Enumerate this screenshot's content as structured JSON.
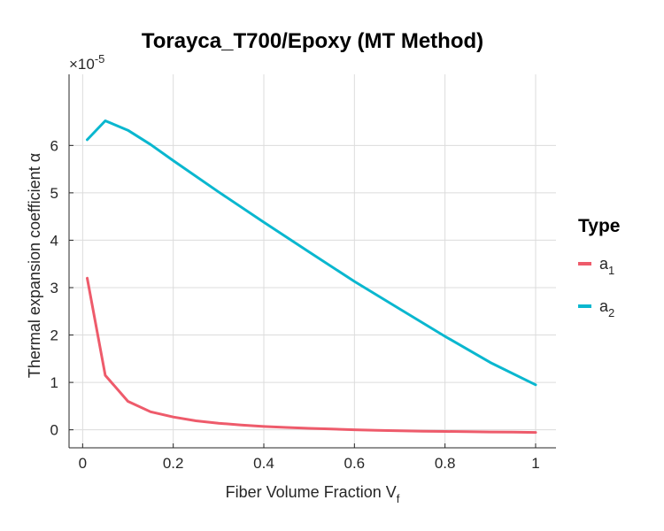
{
  "chart_data": {
    "type": "line",
    "title": "Torayca_T700/Epoxy (MT Method)",
    "xlabel": "Fiber Volume Fraction V",
    "xlabel_sub": "f",
    "ylabel": "Thermal expansion coefficient α",
    "y_exponent_prefix": "×10",
    "y_exponent": "-5",
    "xlim": [
      -0.03,
      1.045
    ],
    "ylim": [
      -0.38,
      7.5
    ],
    "x_ticks": [
      "0",
      "0.2",
      "0.4",
      "0.6",
      "0.8",
      "1"
    ],
    "x_tick_values": [
      0,
      0.2,
      0.4,
      0.6,
      0.8,
      1.0
    ],
    "y_ticks": [
      "0",
      "1",
      "2",
      "3",
      "4",
      "5",
      "6"
    ],
    "y_tick_values": [
      0,
      1,
      2,
      3,
      4,
      5,
      6
    ],
    "grid": true,
    "legend_position": "right",
    "legend_title": "Type",
    "series": [
      {
        "name": "a",
        "name_sub": "1",
        "color": "#ee5b6b",
        "x": [
          0.01,
          0.05,
          0.1,
          0.15,
          0.2,
          0.25,
          0.3,
          0.35,
          0.4,
          0.45,
          0.5,
          0.55,
          0.6,
          0.65,
          0.7,
          0.75,
          0.8,
          0.85,
          0.9,
          0.95,
          1.0
        ],
        "values": [
          3.2,
          1.15,
          0.6,
          0.38,
          0.27,
          0.19,
          0.14,
          0.1,
          0.07,
          0.05,
          0.03,
          0.015,
          0.0,
          -0.01,
          -0.02,
          -0.03,
          -0.035,
          -0.04,
          -0.045,
          -0.05,
          -0.055
        ]
      },
      {
        "name": "a",
        "name_sub": "2",
        "color": "#0ab7cf",
        "x": [
          0.01,
          0.05,
          0.1,
          0.15,
          0.2,
          0.3,
          0.4,
          0.5,
          0.6,
          0.7,
          0.8,
          0.9,
          1.0
        ],
        "values": [
          6.12,
          6.52,
          6.32,
          6.02,
          5.68,
          5.02,
          4.38,
          3.75,
          3.13,
          2.55,
          1.97,
          1.42,
          0.95
        ]
      }
    ]
  }
}
